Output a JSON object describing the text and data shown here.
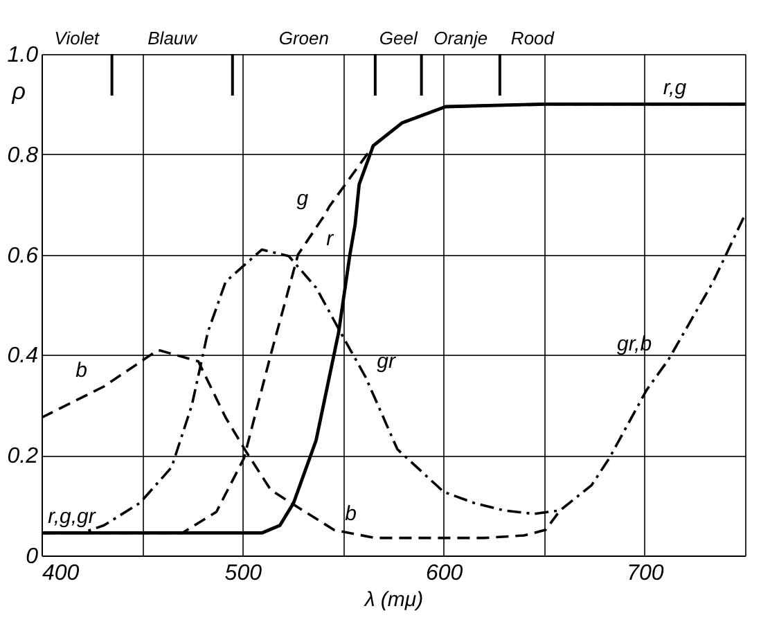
{
  "chart_data": {
    "type": "line",
    "xlabel": "λ (mμ)",
    "ylabel": "ρ",
    "xlim": [
      400,
      750
    ],
    "ylim": [
      0,
      1.0
    ],
    "xticks": [
      400,
      {
        "value": 450,
        "label": null
      },
      500,
      {
        "value": 550,
        "label": null
      },
      600,
      {
        "value": 650,
        "label": null
      },
      700,
      {
        "value": 750,
        "label": null
      }
    ],
    "yticks": [
      0,
      0.2,
      0.4,
      0.6,
      0.8,
      {
        "value": 1.0,
        "label": "1.0"
      }
    ],
    "ref_lines": [
      {
        "axis": "x",
        "value": 435,
        "label": "Violet"
      },
      {
        "axis": "x",
        "value": 495,
        "label": "Blauw"
      },
      {
        "axis": "x",
        "value": 566,
        "label": "Groen"
      },
      {
        "axis": "x",
        "value": 589,
        "label": "Geel"
      },
      {
        "axis": "x",
        "value": 628,
        "label": "Oranje"
      }
    ],
    "grid": true,
    "marker": "none",
    "series": [
      {
        "color": "#000000",
        "line_style": "solid",
        "x": [
          400,
          415,
          509.6,
          518.6,
          525.4,
          536.6,
          547.8,
          553.4,
          556,
          558,
          565,
          579.5,
          601,
          650,
          715,
          750
        ],
        "values": [
          0.045,
          0.045,
          0.045,
          0.06,
          0.105,
          0.23,
          0.445,
          0.6,
          0.66,
          0.74,
          0.817,
          0.863,
          0.895,
          0.9,
          0.9,
          0.9
        ]
      },
      {
        "color": "#000000",
        "line_style": "dashed",
        "x": [
          400,
          470,
          487,
          500.7,
          514,
          527.6,
          541,
          543,
          565,
          579.5,
          601,
          650,
          750
        ],
        "values": [
          0.045,
          0.045,
          0.087,
          0.194,
          0.4,
          0.6,
          0.68,
          0.695,
          0.817,
          0.863,
          0.895,
          0.9,
          0.9
        ]
      },
      {
        "color": "#000000",
        "line_style": "dashed",
        "x": [
          400,
          431,
          458,
          478,
          491.6,
          501.8,
          514,
          527.6,
          545.5,
          565.8,
          590,
          620,
          640,
          650.7,
          658
        ],
        "values": [
          0.275,
          0.337,
          0.41,
          0.387,
          0.275,
          0.207,
          0.131,
          0.096,
          0.051,
          0.035,
          0.035,
          0.035,
          0.04,
          0.051,
          0.09
        ]
      },
      {
        "color": "#000000",
        "line_style": "dashdot",
        "x": [
          400,
          420,
          431,
          449,
          464.7,
          474.8,
          482.7,
          491.6,
          509.6,
          523,
          536.6,
          550,
          561.3,
          577,
          600,
          615,
          630,
          645,
          658,
          673.6,
          682.6,
          701,
          711.8,
          734,
          750
        ],
        "values": [
          0.045,
          0.045,
          0.06,
          0.105,
          0.176,
          0.3,
          0.445,
          0.546,
          0.61,
          0.597,
          0.534,
          0.436,
          0.355,
          0.212,
          0.127,
          0.105,
          0.09,
          0.083,
          0.09,
          0.14,
          0.195,
          0.33,
          0.39,
          0.545,
          0.68
        ]
      }
    ],
    "annotations": [
      "Rood",
      {
        "text": "r,g",
        "x": 715,
        "y": 0.9
      },
      {
        "text": "g",
        "x": 541,
        "y": 0.68
      },
      {
        "text": "r",
        "x": 553.4,
        "y": 0.6
      },
      {
        "text": "gr",
        "x": 561.3,
        "y": 0.355
      },
      {
        "text": "b",
        "x": 431,
        "y": 0.337
      },
      {
        "text": "b",
        "x": 545.5,
        "y": 0.051
      },
      {
        "text": "gr,b",
        "x": 711.8,
        "y": 0.39
      },
      {
        "text": "r,g,gr",
        "x": 415,
        "y": 0.045
      }
    ]
  }
}
